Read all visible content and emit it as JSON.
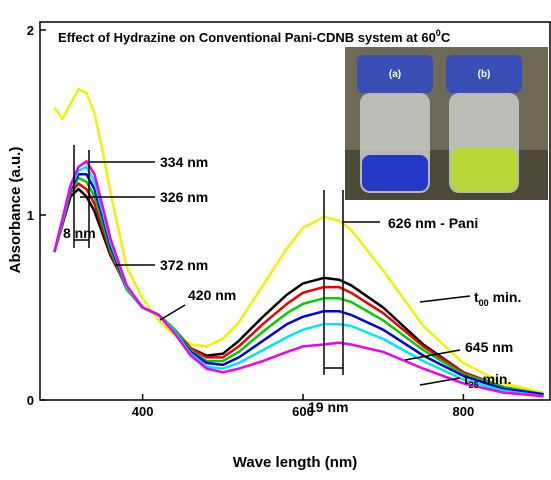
{
  "chart_data": {
    "type": "line",
    "title": "Effect of Hydrazine on Conventional Pani-CDNB system at 60",
    "title_sup": "0",
    "title_end": "C",
    "x_label": "Wave length (nm)",
    "y_label": "Absorbance (a.u.)",
    "x": [
      290,
      300,
      310,
      320,
      330,
      340,
      350,
      360,
      372,
      380,
      400,
      420,
      440,
      460,
      480,
      500,
      520,
      550,
      580,
      600,
      626,
      645,
      660,
      700,
      750,
      800,
      850,
      900
    ],
    "series": [
      {
        "color": "#f2f200",
        "values": [
          1.58,
          1.52,
          1.6,
          1.68,
          1.66,
          1.55,
          1.35,
          1.12,
          0.88,
          0.72,
          0.55,
          0.43,
          0.35,
          0.3,
          0.29,
          0.33,
          0.42,
          0.62,
          0.82,
          0.93,
          0.99,
          0.97,
          0.92,
          0.7,
          0.4,
          0.2,
          0.09,
          0.04
        ]
      },
      {
        "color": "#000000",
        "values": [
          0.8,
          0.95,
          1.1,
          1.14,
          1.1,
          1.02,
          0.9,
          0.78,
          0.68,
          0.6,
          0.5,
          0.46,
          0.38,
          0.28,
          0.24,
          0.25,
          0.32,
          0.45,
          0.57,
          0.63,
          0.66,
          0.65,
          0.62,
          0.5,
          0.3,
          0.15,
          0.07,
          0.03
        ]
      },
      {
        "color": "#ee0000",
        "values": [
          0.8,
          0.96,
          1.12,
          1.17,
          1.14,
          1.06,
          0.93,
          0.79,
          0.68,
          0.6,
          0.5,
          0.46,
          0.38,
          0.28,
          0.23,
          0.23,
          0.29,
          0.41,
          0.52,
          0.58,
          0.61,
          0.61,
          0.58,
          0.47,
          0.29,
          0.15,
          0.07,
          0.03
        ]
      },
      {
        "color": "#00cc00",
        "values": [
          0.8,
          0.96,
          1.13,
          1.2,
          1.18,
          1.1,
          0.96,
          0.81,
          0.69,
          0.6,
          0.5,
          0.46,
          0.38,
          0.27,
          0.21,
          0.21,
          0.26,
          0.37,
          0.47,
          0.52,
          0.55,
          0.55,
          0.53,
          0.43,
          0.27,
          0.14,
          0.07,
          0.03
        ]
      },
      {
        "color": "#0000dd",
        "values": [
          0.8,
          0.97,
          1.14,
          1.22,
          1.22,
          1.14,
          0.99,
          0.83,
          0.7,
          0.61,
          0.5,
          0.46,
          0.37,
          0.26,
          0.2,
          0.19,
          0.23,
          0.32,
          0.41,
          0.45,
          0.48,
          0.48,
          0.46,
          0.38,
          0.24,
          0.13,
          0.06,
          0.03
        ]
      },
      {
        "color": "#00e5ee",
        "values": [
          0.8,
          0.97,
          1.15,
          1.24,
          1.26,
          1.18,
          1.02,
          0.85,
          0.71,
          0.61,
          0.5,
          0.46,
          0.37,
          0.25,
          0.18,
          0.17,
          0.2,
          0.27,
          0.34,
          0.38,
          0.41,
          0.41,
          0.4,
          0.33,
          0.21,
          0.11,
          0.05,
          0.02
        ]
      },
      {
        "color": "#ee00ee",
        "values": [
          0.8,
          0.98,
          1.16,
          1.26,
          1.29,
          1.22,
          1.05,
          0.87,
          0.72,
          0.62,
          0.5,
          0.46,
          0.36,
          0.24,
          0.17,
          0.15,
          0.17,
          0.21,
          0.26,
          0.29,
          0.3,
          0.31,
          0.3,
          0.26,
          0.17,
          0.09,
          0.04,
          0.02
        ]
      }
    ],
    "xlim": [
      272,
      908
    ],
    "ylim": [
      0,
      2
    ],
    "xticks": [
      400,
      600,
      800
    ],
    "yticks": [
      0,
      1,
      2
    ],
    "annotations": [
      "334 nm",
      "326 nm",
      "8 nm",
      "372 nm",
      "420 nm",
      "626 nm - Pani",
      "645 nm",
      "19 nm"
    ],
    "time_labels": [
      {
        "base": "t",
        "sub": "00",
        "rest": " min."
      },
      {
        "base": "t",
        "sub": "25",
        "rest": " min."
      }
    ],
    "photo_labels": [
      "(a)",
      "(b)"
    ]
  }
}
